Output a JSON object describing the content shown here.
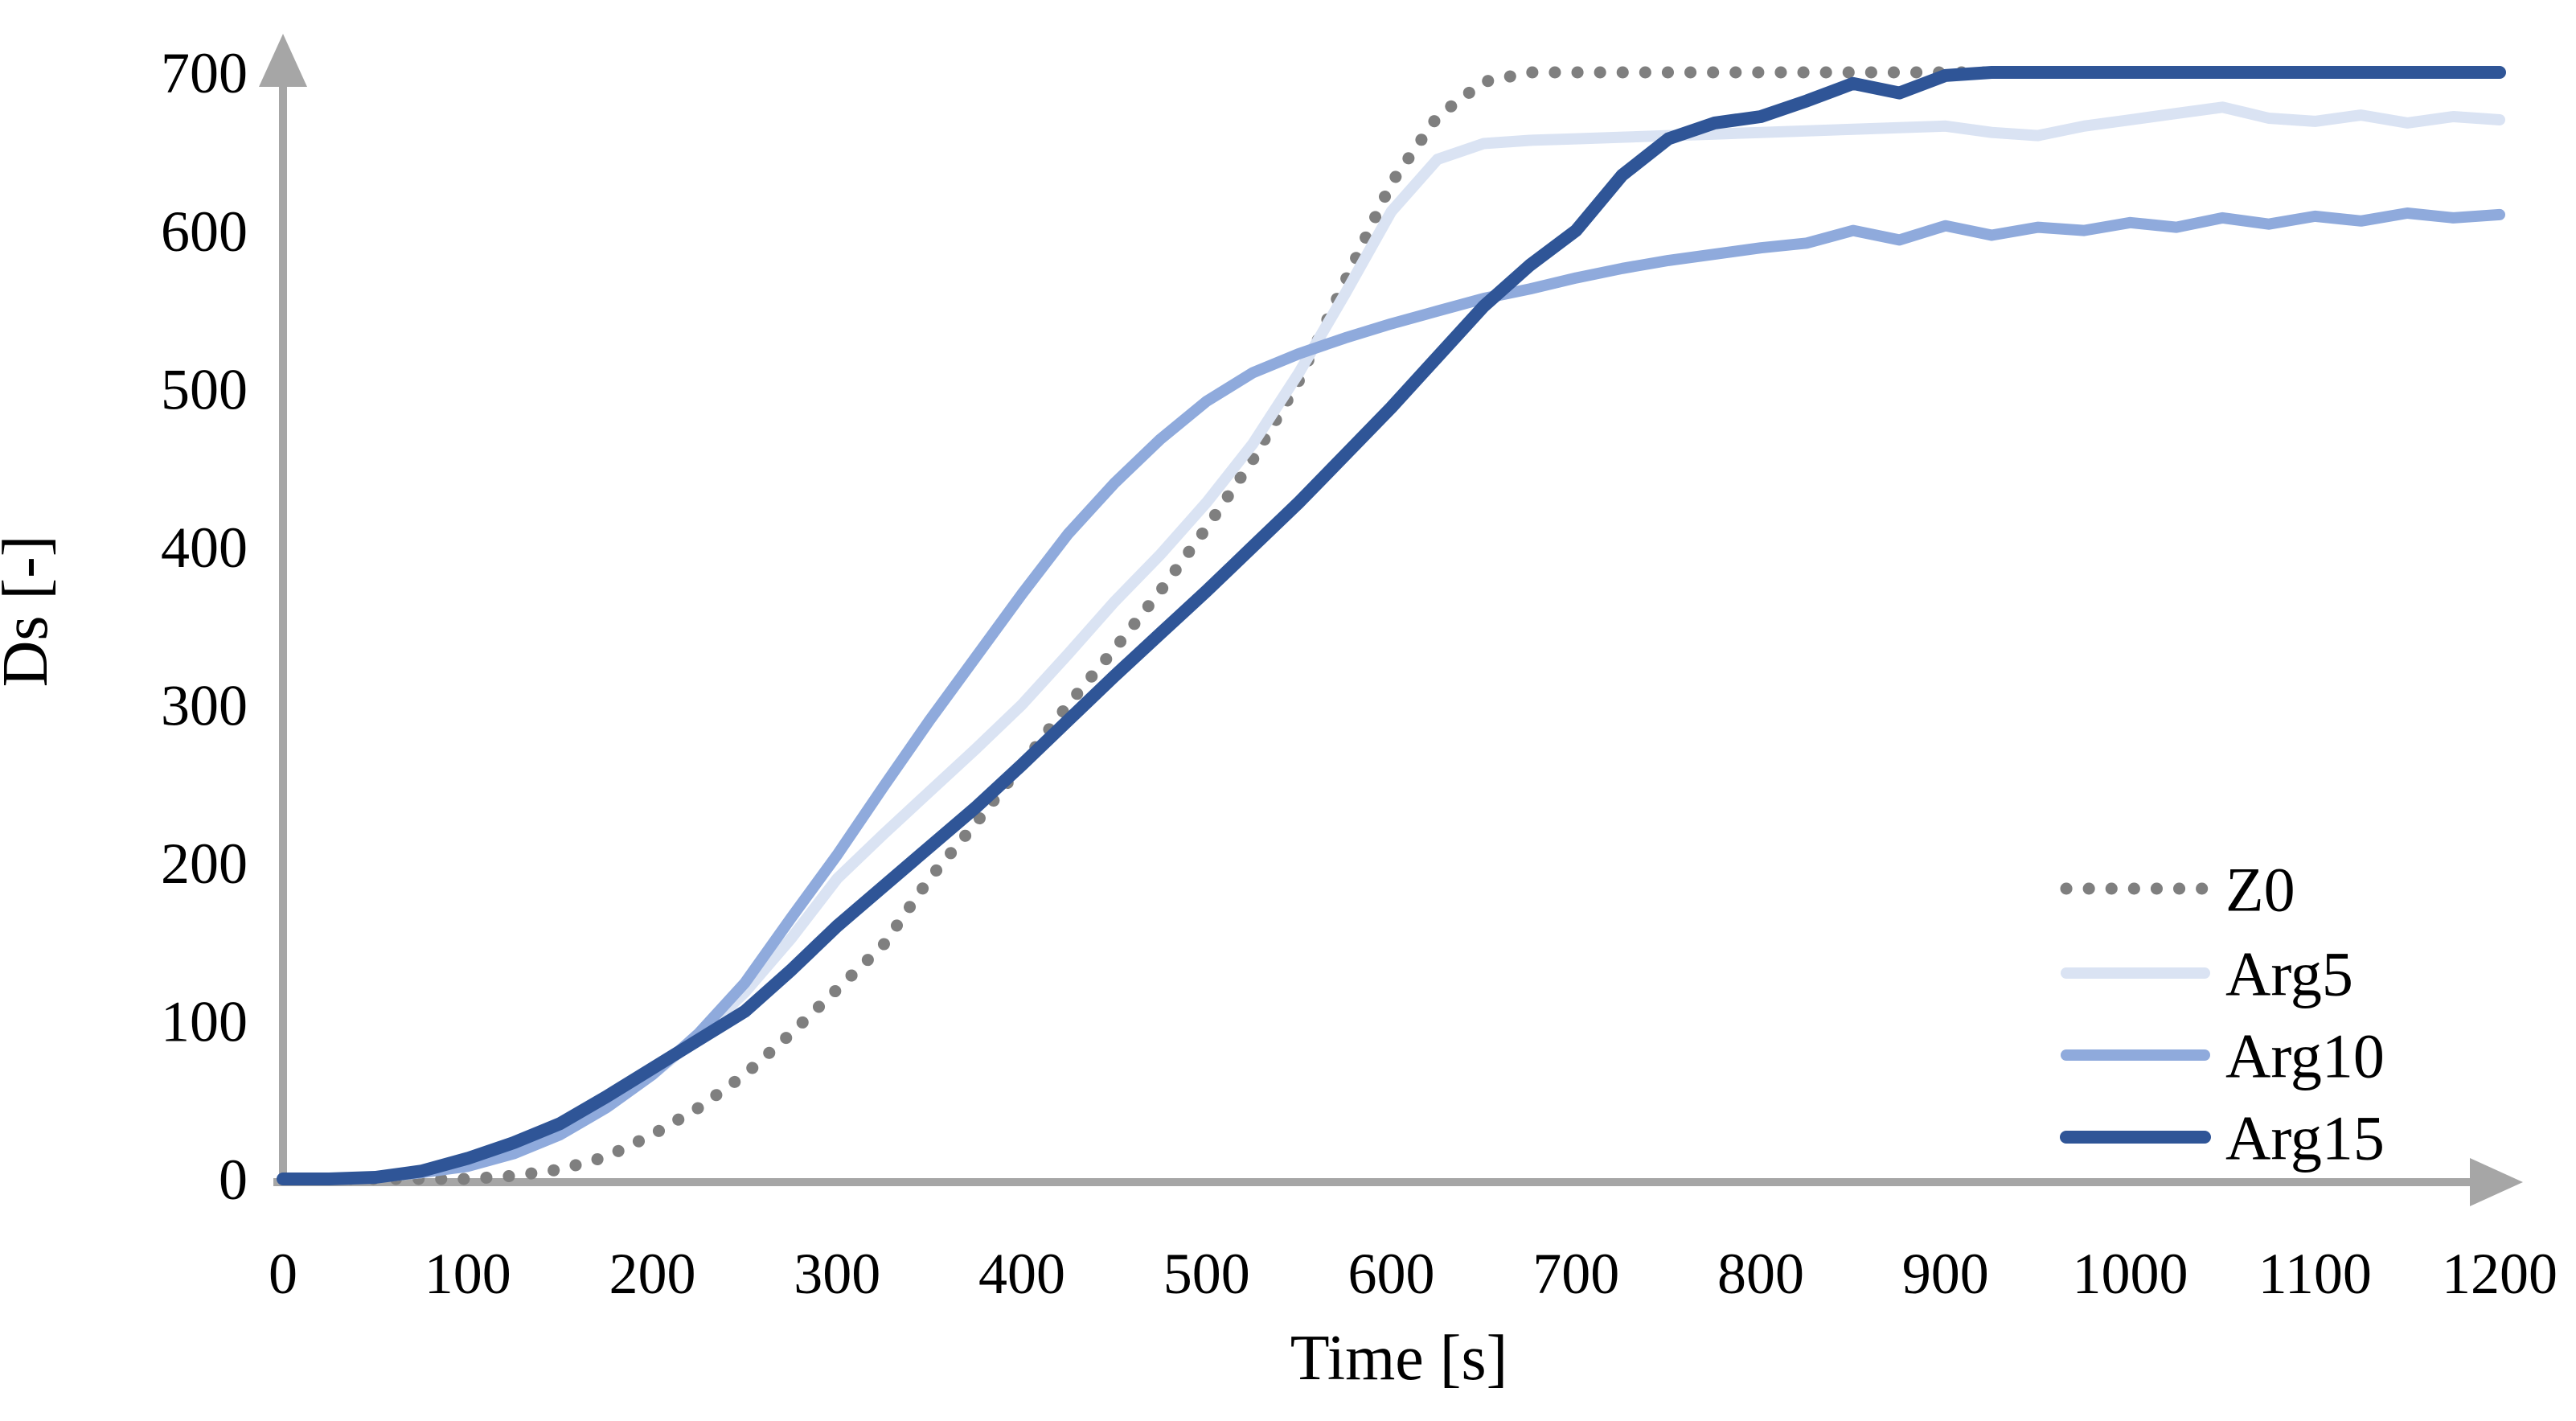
{
  "chart_data": {
    "type": "line",
    "title": "",
    "xlabel": "Time [s]",
    "ylabel": "Ds [-]",
    "xlim": [
      0,
      1200
    ],
    "ylim": [
      0,
      700
    ],
    "x_ticks": [
      0,
      100,
      200,
      300,
      400,
      500,
      600,
      700,
      800,
      900,
      1000,
      1100,
      1200
    ],
    "y_ticks": [
      0,
      100,
      200,
      300,
      400,
      500,
      600,
      700
    ],
    "grid": false,
    "legend_position": "lower-right",
    "axis_color": "#a6a6a6",
    "text_color": "#000000",
    "x": [
      0,
      25,
      50,
      75,
      100,
      125,
      150,
      175,
      200,
      225,
      250,
      275,
      300,
      325,
      350,
      375,
      400,
      425,
      450,
      475,
      500,
      525,
      550,
      575,
      600,
      625,
      650,
      675,
      700,
      725,
      750,
      775,
      800,
      825,
      850,
      875,
      900,
      925,
      950,
      975,
      1000,
      1025,
      1050,
      1075,
      1100,
      1125,
      1150,
      1175,
      1200
    ],
    "series": [
      {
        "name": "Z0",
        "color": "#7f7f7f",
        "style": "dotted",
        "width": 15,
        "values": [
          0,
          0,
          0,
          0,
          0,
          2,
          6,
          14,
          28,
          45,
          66,
          92,
          120,
          148,
          190,
          225,
          262,
          300,
          335,
          372,
          412,
          455,
          505,
          568,
          630,
          672,
          694,
          700,
          700,
          700,
          700,
          700,
          700,
          700,
          700,
          700,
          700,
          700,
          700,
          700,
          700,
          700,
          700,
          700,
          700,
          700,
          700,
          700,
          700
        ]
      },
      {
        "name": "Arg5",
        "color": "#dae3f3",
        "style": "solid",
        "width": 14,
        "values": [
          0,
          0,
          1,
          4,
          9,
          18,
          30,
          47,
          66,
          90,
          118,
          152,
          190,
          218,
          245,
          272,
          300,
          332,
          365,
          395,
          428,
          465,
          510,
          560,
          612,
          645,
          655,
          657,
          658,
          659,
          660,
          661,
          662,
          663,
          664,
          665,
          666,
          662,
          660,
          666,
          670,
          674,
          678,
          671,
          669,
          673,
          668,
          672,
          670
        ]
      },
      {
        "name": "Arg10",
        "color": "#8faadc",
        "style": "solid",
        "width": 14,
        "values": [
          0,
          0,
          1,
          4,
          8,
          16,
          28,
          45,
          66,
          92,
          124,
          165,
          205,
          248,
          290,
          330,
          370,
          408,
          440,
          468,
          492,
          510,
          522,
          532,
          541,
          549,
          557,
          563,
          570,
          576,
          581,
          585,
          589,
          592,
          600,
          594,
          603,
          597,
          602,
          600,
          605,
          602,
          608,
          604,
          609,
          606,
          611,
          608,
          610
        ]
      },
      {
        "name": "Arg15",
        "color": "#2f5597",
        "style": "solid",
        "width": 16,
        "values": [
          0,
          0,
          1,
          5,
          13,
          23,
          35,
          52,
          70,
          88,
          106,
          132,
          160,
          185,
          210,
          235,
          262,
          290,
          318,
          345,
          372,
          400,
          428,
          458,
          488,
          520,
          552,
          578,
          600,
          635,
          658,
          668,
          672,
          682,
          693,
          687,
          698,
          700,
          700,
          700,
          700,
          700,
          700,
          700,
          700,
          700,
          700,
          700,
          700
        ]
      }
    ]
  }
}
